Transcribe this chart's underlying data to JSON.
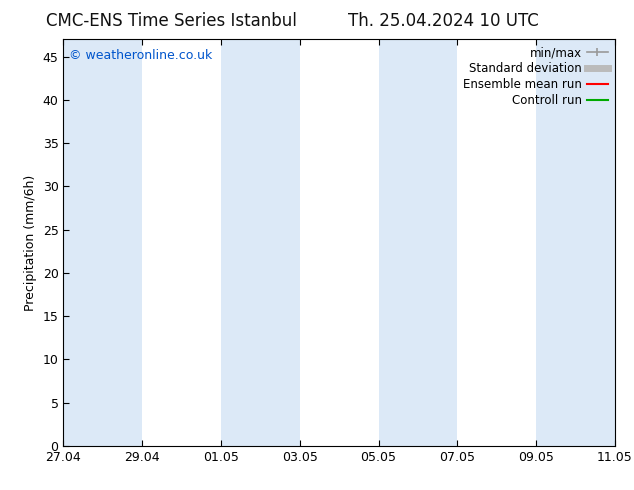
{
  "title_left": "CMC-ENS Time Series Istanbul",
  "title_right": "Th. 25.04.2024 10 UTC",
  "ylabel": "Precipitation (mm/6h)",
  "ylim": [
    0,
    47
  ],
  "yticks": [
    0,
    5,
    10,
    15,
    20,
    25,
    30,
    35,
    40,
    45
  ],
  "bg_color": "#ffffff",
  "plot_bg_color": "#ffffff",
  "shaded_band_color": "#dce9f7",
  "copyright_text": "© weatheronline.co.uk",
  "copyright_color": "#0055cc",
  "legend_items": [
    {
      "label": "min/max",
      "color": "#999999",
      "lw": 1.2
    },
    {
      "label": "Standard deviation",
      "color": "#bbbbbb",
      "lw": 5
    },
    {
      "label": "Ensemble mean run",
      "color": "#ff0000",
      "lw": 1.5
    },
    {
      "label": "Controll run",
      "color": "#00aa00",
      "lw": 1.5
    }
  ],
  "xticklabels": [
    "27.04",
    "29.04",
    "01.05",
    "03.05",
    "05.05",
    "07.05",
    "09.05",
    "11.05"
  ],
  "xtick_positions": [
    0,
    2,
    4,
    6,
    8,
    10,
    12,
    14
  ],
  "xlim": [
    0,
    14
  ],
  "shaded_bands": [
    [
      0,
      2
    ],
    [
      4,
      6
    ],
    [
      8,
      10
    ],
    [
      12,
      14
    ]
  ],
  "title_fontsize": 12,
  "ylabel_fontsize": 9,
  "tick_fontsize": 9,
  "legend_fontsize": 8.5,
  "copyright_fontsize": 9
}
